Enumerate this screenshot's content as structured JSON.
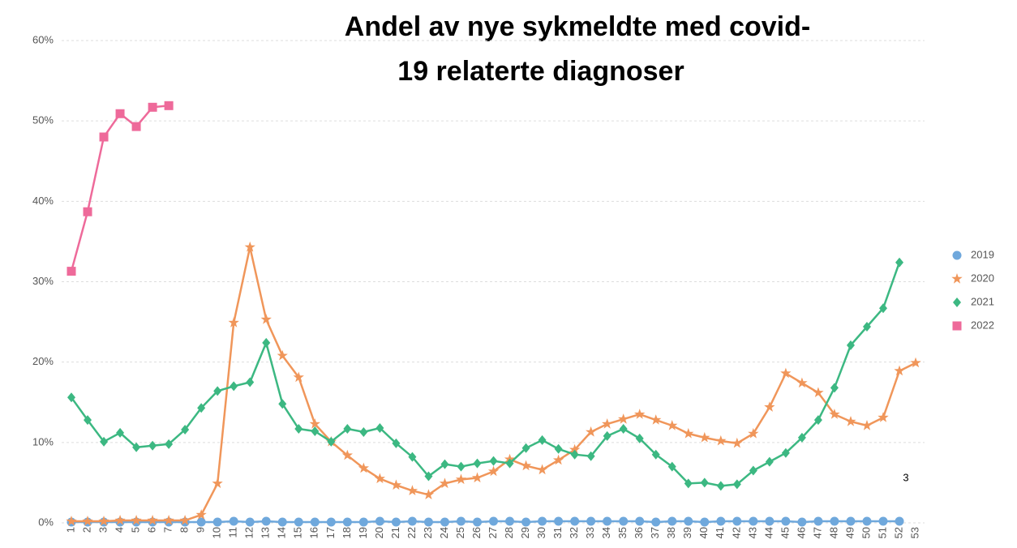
{
  "chart_data": {
    "type": "line",
    "title": [
      "Andel av nye sykmeldte med covid-",
      "19 relaterte diagnoser"
    ],
    "annotations": [
      "3"
    ],
    "categories": [
      "1",
      "2",
      "3",
      "4",
      "5",
      "6",
      "7",
      "8",
      "9",
      "10",
      "11",
      "12",
      "13",
      "14",
      "15",
      "16",
      "17",
      "18",
      "19",
      "20",
      "21",
      "22",
      "23",
      "24",
      "25",
      "26",
      "27",
      "28",
      "29",
      "30",
      "31",
      "32",
      "33",
      "34",
      "35",
      "36",
      "37",
      "38",
      "39",
      "40",
      "41",
      "42",
      "43",
      "44",
      "45",
      "46",
      "47",
      "48",
      "49",
      "50",
      "51",
      "52",
      "53"
    ],
    "ylim": [
      0,
      60
    ],
    "yticks": [
      {
        "value": 0,
        "label": "0%"
      },
      {
        "value": 10,
        "label": "10%"
      },
      {
        "value": 20,
        "label": "20%"
      },
      {
        "value": 30,
        "label": "30%"
      },
      {
        "value": 40,
        "label": "40%"
      },
      {
        "value": 50,
        "label": "50%"
      },
      {
        "value": 60,
        "label": "60%"
      }
    ],
    "grid": true,
    "legend": "right",
    "series": [
      {
        "name": "2019",
        "color": "#6fa8dc",
        "marker": "circle",
        "values": [
          0.1,
          0.1,
          0.1,
          0.1,
          0.1,
          0.1,
          0.1,
          0.1,
          0.1,
          0.1,
          0.2,
          0.1,
          0.2,
          0.1,
          0.1,
          0.1,
          0.1,
          0.1,
          0.1,
          0.2,
          0.1,
          0.2,
          0.1,
          0.1,
          0.2,
          0.1,
          0.2,
          0.2,
          0.1,
          0.2,
          0.2,
          0.2,
          0.2,
          0.2,
          0.2,
          0.2,
          0.1,
          0.2,
          0.2,
          0.1,
          0.2,
          0.2,
          0.2,
          0.2,
          0.2,
          0.1,
          0.2,
          0.2,
          0.2,
          0.2,
          0.2,
          0.2,
          null
        ]
      },
      {
        "name": "2020",
        "color": "#f0965a",
        "marker": "star",
        "values": [
          0.2,
          0.2,
          0.2,
          0.3,
          0.3,
          0.3,
          0.3,
          0.3,
          1.0,
          4.9,
          24.9,
          34.3,
          25.3,
          20.8,
          18.1,
          12.3,
          10.1,
          8.4,
          6.8,
          5.5,
          4.7,
          4.0,
          3.5,
          4.9,
          5.4,
          5.6,
          6.4,
          7.9,
          7.1,
          6.6,
          7.8,
          9.1,
          11.3,
          12.3,
          12.9,
          13.5,
          12.8,
          12.1,
          11.1,
          10.6,
          10.2,
          9.9,
          11.1,
          14.4,
          18.6,
          17.4,
          16.2,
          13.5,
          12.6,
          12.1,
          13.1,
          18.9,
          19.9
        ]
      },
      {
        "name": "2021",
        "color": "#3cb882",
        "marker": "diamond",
        "values": [
          15.6,
          12.8,
          10.1,
          11.2,
          9.4,
          9.6,
          9.8,
          11.6,
          14.3,
          16.4,
          17.0,
          17.5,
          22.4,
          14.8,
          11.7,
          11.4,
          10.1,
          11.7,
          11.3,
          11.8,
          9.9,
          8.2,
          5.8,
          7.3,
          7.0,
          7.4,
          7.7,
          7.4,
          9.3,
          10.3,
          9.2,
          8.5,
          8.3,
          10.8,
          11.7,
          10.5,
          8.5,
          7.0,
          4.9,
          5.0,
          4.6,
          4.8,
          6.5,
          7.6,
          8.7,
          10.6,
          12.8,
          16.8,
          22.1,
          24.4,
          26.7,
          32.4,
          null
        ]
      },
      {
        "name": "2022",
        "color": "#ee6a9a",
        "marker": "square",
        "values": [
          31.3,
          38.7,
          48.0,
          50.9,
          49.3,
          51.7,
          51.9,
          null,
          null,
          null,
          null,
          null,
          null,
          null,
          null,
          null,
          null,
          null,
          null,
          null,
          null,
          null,
          null,
          null,
          null,
          null,
          null,
          null,
          null,
          null,
          null,
          null,
          null,
          null,
          null,
          null,
          null,
          null,
          null,
          null,
          null,
          null,
          null,
          null,
          null,
          null,
          null,
          null,
          null,
          null,
          null,
          null,
          null
        ]
      }
    ]
  }
}
